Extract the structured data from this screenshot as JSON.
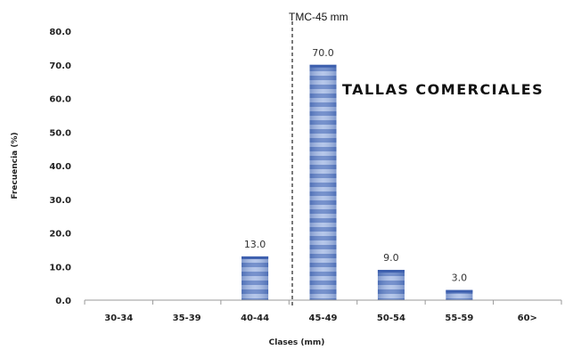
{
  "chart_data": {
    "type": "bar",
    "categories": [
      "30-34",
      "35-39",
      "40-44",
      "45-49",
      "50-54",
      "55-59",
      "60>"
    ],
    "values": [
      0,
      0,
      13.0,
      70.0,
      9.0,
      3.0,
      0
    ],
    "data_labels": [
      "",
      "",
      "13.0",
      "70.0",
      "9.0",
      "3.0",
      ""
    ],
    "xlabel": "Clases (mm)",
    "ylabel": "Frecuencia (%)",
    "ylim": [
      0,
      80
    ],
    "yticks": [
      "0.0",
      "10.0",
      "20.0",
      "30.0",
      "40.0",
      "50.0",
      "60.0",
      "70.0",
      "80.0"
    ],
    "grid": false,
    "bar_color": "#6f8fcf",
    "annotations": {
      "reference_line_label": "TMC-45 mm",
      "region_label": "TALLAS COMERCIALES"
    }
  }
}
